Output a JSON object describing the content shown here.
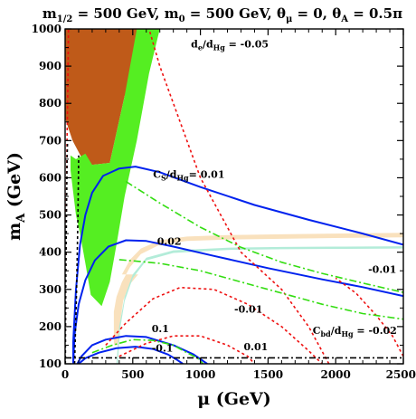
{
  "chart_data": {
    "type": "line",
    "title": "m1/2 = 500 GeV, m0 = 500 GeV, θμ = 0, θA = 0.5π",
    "title_parts": {
      "m12_label": "m",
      "m12_sub": "1/2",
      "m12_val": " = 500 GeV, ",
      "m0_label": "m",
      "m0_sub": "0",
      "m0_val": " = 500 GeV, ",
      "thmu_label": "θ",
      "thmu_sub": "μ",
      "thmu_val": " = 0, ",
      "tha_label": "θ",
      "tha_sub": "A",
      "tha_val": " = 0.5π"
    },
    "xlabel": "μ (GeV)",
    "ylabel": "mA (GeV)",
    "ylabel_main": "m",
    "ylabel_sub": "A",
    "ylabel_rest": " (GeV)",
    "xlim": [
      0,
      2500
    ],
    "ylim": [
      100,
      1000
    ],
    "xticks": [
      0,
      500,
      1000,
      1500,
      2000,
      2500
    ],
    "yticks": [
      100,
      200,
      300,
      400,
      500,
      600,
      700,
      800,
      900,
      1000
    ],
    "xtick_labels": [
      "0",
      "500",
      "1000",
      "1500",
      "2000",
      "2500"
    ],
    "ytick_labels": [
      "100",
      "200",
      "300",
      "400",
      "500",
      "600",
      "700",
      "800",
      "900",
      "1000"
    ],
    "colors": {
      "brown": "#bf5a19",
      "green": "#55ee22",
      "tan": "#f9e1bd",
      "aqua": "#b3ecd9",
      "blue": "#0022ee",
      "red": "#ee1111",
      "dashgreen": "#33dd11",
      "black": "#000000"
    },
    "regions": [
      {
        "name": "brown",
        "points": [
          [
            0,
            1000
          ],
          [
            700,
            1000
          ],
          [
            440,
            820
          ],
          [
            330,
            640
          ],
          [
            200,
            635
          ],
          [
            120,
            655
          ],
          [
            55,
            700
          ],
          [
            0,
            760
          ]
        ]
      },
      {
        "name": "green",
        "points": [
          [
            150,
            665
          ],
          [
            200,
            635
          ],
          [
            330,
            640
          ],
          [
            440,
            820
          ],
          [
            530,
            1000
          ],
          [
            700,
            1000
          ],
          [
            620,
            880
          ],
          [
            530,
            700
          ],
          [
            440,
            550
          ],
          [
            380,
            420
          ],
          [
            330,
            320
          ],
          [
            270,
            255
          ],
          [
            190,
            285
          ],
          [
            150,
            370
          ],
          [
            110,
            450
          ],
          [
            80,
            500
          ],
          [
            60,
            560
          ],
          [
            40,
            620
          ],
          [
            40,
            660
          ],
          [
            80,
            650
          ]
        ]
      },
      {
        "name": "tan",
        "points": [
          [
            420,
            340
          ],
          [
            480,
            380
          ],
          [
            560,
            410
          ],
          [
            700,
            432
          ],
          [
            900,
            442
          ],
          [
            1200,
            446
          ],
          [
            1600,
            448
          ],
          [
            2000,
            450
          ],
          [
            2500,
            452
          ],
          [
            2500,
            440
          ],
          [
            2000,
            438
          ],
          [
            1600,
            436
          ],
          [
            1200,
            434
          ],
          [
            900,
            430
          ],
          [
            700,
            420
          ],
          [
            560,
            395
          ],
          [
            480,
            360
          ],
          [
            420,
            320
          ],
          [
            380,
            280
          ],
          [
            360,
            240
          ],
          [
            360,
            150
          ],
          [
            400,
            150
          ],
          [
            410,
            220
          ],
          [
            430,
            270
          ],
          [
            470,
            310
          ],
          [
            540,
            340
          ]
        ]
      },
      {
        "name": "aqua",
        "points": [
          [
            380,
            100
          ],
          [
            400,
            200
          ],
          [
            440,
            280
          ],
          [
            500,
            340
          ],
          [
            600,
            385
          ],
          [
            800,
            405
          ],
          [
            1200,
            412
          ],
          [
            1600,
            414
          ],
          [
            2000,
            415
          ],
          [
            2500,
            416
          ],
          [
            2500,
            410
          ],
          [
            2000,
            409
          ],
          [
            1600,
            408
          ],
          [
            1200,
            406
          ],
          [
            800,
            398
          ],
          [
            600,
            378
          ],
          [
            500,
            330
          ],
          [
            440,
            268
          ],
          [
            405,
            190
          ],
          [
            390,
            100
          ]
        ]
      }
    ],
    "series": [
      {
        "style": "blue",
        "points": [
          [
            60,
            100
          ],
          [
            60,
            160
          ],
          [
            80,
            300
          ],
          [
            110,
            420
          ],
          [
            150,
            500
          ],
          [
            200,
            560
          ],
          [
            280,
            605
          ],
          [
            400,
            625
          ],
          [
            520,
            630
          ],
          [
            700,
            615
          ],
          [
            1000,
            575
          ],
          [
            1400,
            527
          ],
          [
            1800,
            487
          ],
          [
            2200,
            450
          ],
          [
            2500,
            420
          ]
        ]
      },
      {
        "style": "blue",
        "points": [
          [
            60,
            100
          ],
          [
            70,
            180
          ],
          [
            100,
            260
          ],
          [
            150,
            325
          ],
          [
            220,
            378
          ],
          [
            320,
            415
          ],
          [
            450,
            432
          ],
          [
            600,
            430
          ],
          [
            800,
            415
          ],
          [
            1100,
            390
          ],
          [
            1500,
            357
          ],
          [
            1900,
            327
          ],
          [
            2200,
            306
          ],
          [
            2500,
            282
          ]
        ]
      },
      {
        "style": "blue",
        "points": [
          [
            90,
            100
          ],
          [
            120,
            120
          ],
          [
            200,
            150
          ],
          [
            300,
            165
          ],
          [
            450,
            175
          ],
          [
            600,
            172
          ],
          [
            800,
            150
          ],
          [
            950,
            125
          ],
          [
            1050,
            100
          ]
        ]
      },
      {
        "style": "blue",
        "points": [
          [
            100,
            100
          ],
          [
            150,
            115
          ],
          [
            250,
            130
          ],
          [
            380,
            142
          ],
          [
            520,
            146
          ],
          [
            650,
            140
          ],
          [
            760,
            125
          ],
          [
            830,
            110
          ],
          [
            870,
            100
          ]
        ]
      },
      {
        "style": "red",
        "points": [
          [
            1,
            100
          ],
          [
            3,
            250
          ],
          [
            6,
            400
          ],
          [
            10,
            550
          ],
          [
            14,
            700
          ],
          [
            20,
            850
          ],
          [
            25,
            1000
          ]
        ]
      },
      {
        "style": "red",
        "points": [
          [
            1950,
            100
          ],
          [
            1800,
            200
          ],
          [
            1600,
            300
          ],
          [
            1300,
            400
          ],
          [
            1000,
            600
          ],
          [
            850,
            750
          ],
          [
            700,
            900
          ],
          [
            620,
            1000
          ]
        ]
      },
      {
        "style": "red",
        "points": [
          [
            300,
            150
          ],
          [
            450,
            210
          ],
          [
            650,
            275
          ],
          [
            850,
            305
          ],
          [
            1100,
            300
          ],
          [
            1350,
            260
          ],
          [
            1600,
            200
          ],
          [
            1800,
            135
          ],
          [
            1900,
            100
          ]
        ]
      },
      {
        "style": "red",
        "points": [
          [
            400,
            120
          ],
          [
            600,
            155
          ],
          [
            800,
            175
          ],
          [
            1000,
            175
          ],
          [
            1200,
            150
          ],
          [
            1350,
            120
          ],
          [
            1400,
            100
          ]
        ]
      },
      {
        "style": "red",
        "points": [
          [
            2500,
            120
          ],
          [
            2420,
            175
          ],
          [
            2300,
            230
          ],
          [
            2150,
            290
          ],
          [
            2000,
            330
          ]
        ]
      },
      {
        "style": "dashgreen",
        "points": [
          [
            450,
            590
          ],
          [
            700,
            532
          ],
          [
            1000,
            467
          ],
          [
            1300,
            413
          ],
          [
            1600,
            373
          ],
          [
            1900,
            343
          ],
          [
            2200,
            317
          ],
          [
            2500,
            292
          ]
        ]
      },
      {
        "style": "dashgreen",
        "points": [
          [
            400,
            380
          ],
          [
            700,
            370
          ],
          [
            1000,
            350
          ],
          [
            1300,
            320
          ],
          [
            1600,
            290
          ],
          [
            1900,
            260
          ],
          [
            2200,
            235
          ],
          [
            2500,
            220
          ]
        ]
      },
      {
        "style": "dashgreen",
        "points": [
          [
            200,
            130
          ],
          [
            350,
            150
          ],
          [
            500,
            165
          ],
          [
            650,
            163
          ],
          [
            800,
            150
          ],
          [
            900,
            130
          ],
          [
            980,
            115
          ],
          [
            1020,
            100
          ]
        ]
      },
      {
        "style": "black",
        "points": [
          [
            2,
            100
          ],
          [
            5,
            300
          ],
          [
            10,
            500
          ],
          [
            15,
            650
          ],
          [
            18,
            700
          ]
        ]
      },
      {
        "style": "black",
        "points": [
          [
            70,
            100
          ],
          [
            85,
            300
          ],
          [
            95,
            500
          ],
          [
            100,
            660
          ]
        ]
      },
      {
        "style": "blackdash",
        "points": [
          [
            0,
            116
          ],
          [
            2500,
            116
          ]
        ]
      }
    ],
    "annotations": {
      "de": {
        "main": "d",
        "sub1": "e",
        "slash": "/d",
        "sub2": "Hg",
        "val": " = -0.05",
        "at": [
          930,
          950
        ]
      },
      "cs": {
        "main": "C",
        "sub1": "S",
        "slash": "/d",
        "sub2": "Hg",
        "val": "= 0.01",
        "at": [
          650,
          600
        ]
      },
      "v002": {
        "text": "0.02",
        "at": [
          680,
          420
        ]
      },
      "vm001a": {
        "text": "-0.01",
        "at": [
          2240,
          345
        ]
      },
      "vm001b": {
        "text": "-0.01",
        "at": [
          1250,
          238
        ]
      },
      "cbd": {
        "main": "C",
        "sub1": "bd",
        "slash": "/d",
        "sub2": "Hg",
        "val": " = -0.02",
        "at": [
          1830,
          180
        ]
      },
      "v01": {
        "text": "0.1",
        "at": [
          640,
          185
        ]
      },
      "vm01": {
        "text": "-0.1",
        "at": [
          640,
          133
        ]
      },
      "v001": {
        "text": "0.01",
        "at": [
          1320,
          136
        ]
      }
    }
  }
}
